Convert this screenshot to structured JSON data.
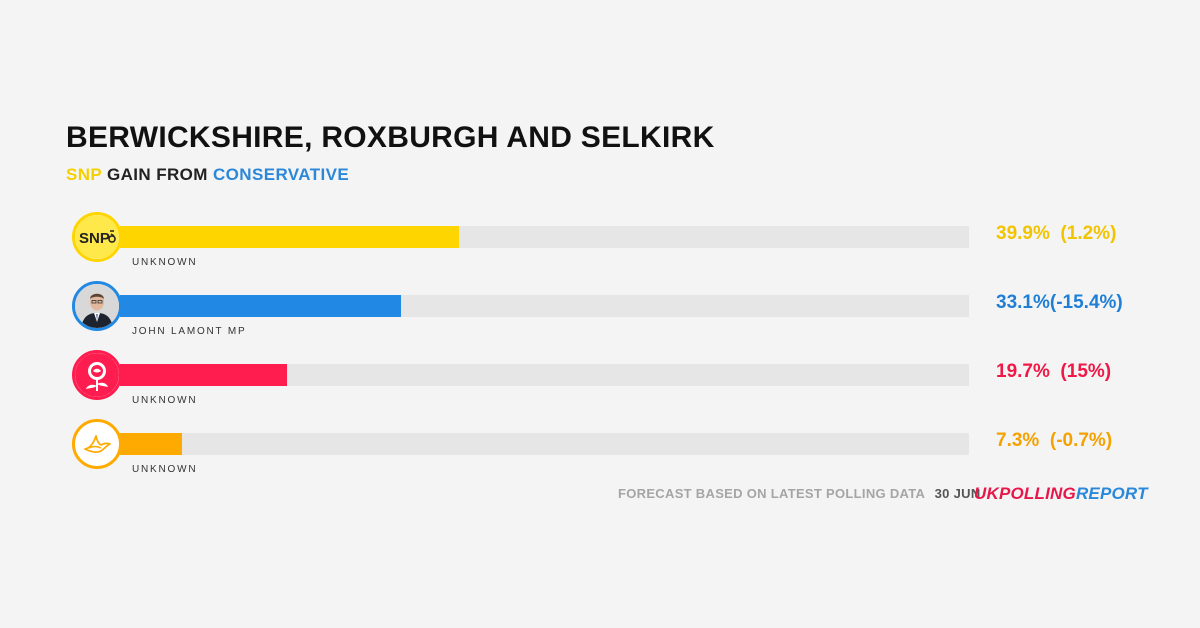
{
  "title": "BERWICKSHIRE, ROXBURGH AND SELKIRK",
  "subtitle": {
    "winner": "SNP",
    "gain_text": "GAIN FROM",
    "loser": "CONSERVATIVE",
    "winner_color": "#f5cf00",
    "loser_color": "#2b88d9"
  },
  "footer": {
    "note": "FORECAST BASED ON LATEST POLLING DATA",
    "date": "30 JUN",
    "brand_part1": "UK",
    "brand_part2": "POLLING",
    "brand_part3": "REPORT",
    "brand_color1": "#e8174a",
    "brand_color2": "#e8174a",
    "brand_color3": "#2b88d9"
  },
  "chart_data": {
    "type": "bar",
    "xlim": [
      0,
      100
    ],
    "parties": [
      {
        "name": "SNP",
        "logo_text": "SNP",
        "icon": "snp-logo-icon",
        "candidate": "UNKNOWN",
        "value": 39.9,
        "value_label": "39.9%",
        "change_label": "(1.2%)",
        "color": "#ffd500",
        "text_color": "#f2c400"
      },
      {
        "name": "Conservative",
        "icon": "candidate-photo-icon",
        "candidate": "JOHN LAMONT MP",
        "value": 33.1,
        "value_label": "33.1%",
        "change_label": "(-15.4%)",
        "color": "#2188e3",
        "text_color": "#1f7fd6"
      },
      {
        "name": "Labour",
        "icon": "labour-rose-icon",
        "candidate": "UNKNOWN",
        "value": 19.7,
        "value_label": "19.7%",
        "change_label": "(15%)",
        "color": "#ff1d4f",
        "text_color": "#ee1947"
      },
      {
        "name": "Liberal Democrat",
        "icon": "libdem-bird-icon",
        "candidate": "UNKNOWN",
        "value": 7.3,
        "value_label": "7.3%",
        "change_label": "(-0.7%)",
        "color": "#ffaa00",
        "text_color": "#f5a200"
      }
    ]
  }
}
